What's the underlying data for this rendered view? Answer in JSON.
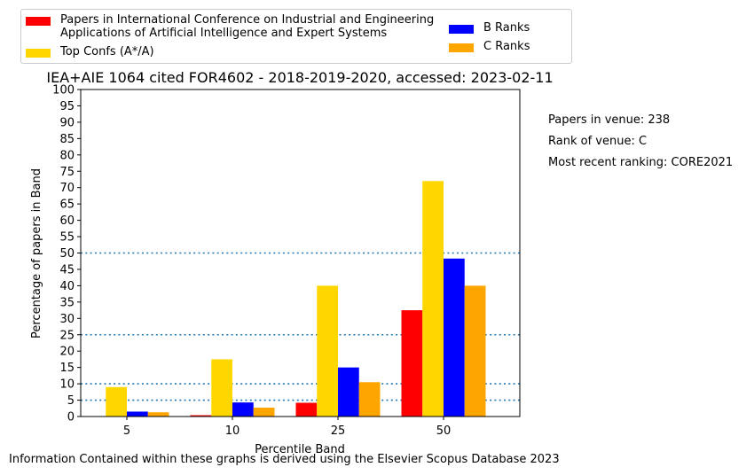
{
  "chart_data": {
    "type": "bar",
    "title": "IEA+AIE 1064 cited FOR4602 - 2018-2019-2020, accessed: 2023-02-11",
    "xlabel": "Percentile Band",
    "ylabel": "Percentage of papers in Band",
    "categories": [
      "5",
      "10",
      "25",
      "50"
    ],
    "ylim": [
      0,
      100
    ],
    "yticks": [
      "0",
      "5",
      "10",
      "15",
      "20",
      "25",
      "30",
      "35",
      "40",
      "45",
      "50",
      "55",
      "60",
      "65",
      "70",
      "75",
      "80",
      "85",
      "90",
      "95",
      "100"
    ],
    "reference_lines": [
      5,
      10,
      25,
      50
    ],
    "legend_position": "top",
    "series": [
      {
        "name": "Papers in International Conference on Industrial and Engineering\nApplications of Artificial Intelligence and Expert Systems",
        "color": "#ff0000",
        "values": [
          0,
          0.4,
          4.2,
          32.5
        ]
      },
      {
        "name": "Top Confs (A*/A)",
        "color": "#ffd700",
        "values": [
          9,
          17.5,
          40,
          72
        ]
      },
      {
        "name": "B Ranks",
        "color": "#0000ff",
        "values": [
          1.5,
          4.3,
          15,
          48.3
        ]
      },
      {
        "name": "C Ranks",
        "color": "#ffa500",
        "values": [
          1.3,
          2.7,
          10.5,
          40
        ]
      }
    ]
  },
  "side_notes": {
    "papers_in_venue": "Papers in venue: 238",
    "rank_of_venue": "Rank of venue: C",
    "most_recent_ranking": "Most recent ranking: CORE2021"
  },
  "footer": "Information Contained within these graphs is derived using the Elsevier Scopus Database 2023"
}
